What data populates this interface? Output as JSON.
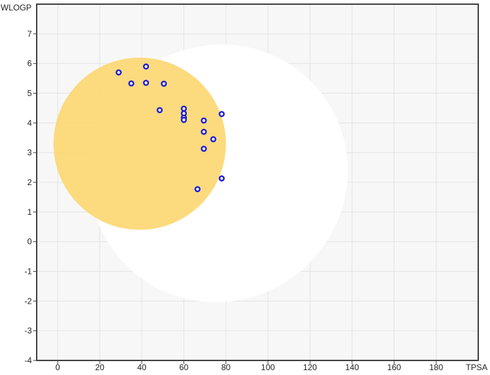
{
  "chart_data": {
    "type": "scatter",
    "xlabel": "TPSA",
    "ylabel": "WLOGP",
    "xlim": [
      -10,
      200
    ],
    "ylim": [
      -4,
      8
    ],
    "x_ticks": [
      0,
      20,
      40,
      60,
      80,
      100,
      120,
      140,
      160,
      180
    ],
    "y_ticks": [
      -4,
      -3,
      -2,
      -1,
      0,
      1,
      2,
      3,
      4,
      5,
      6,
      7
    ],
    "grid": true,
    "regions": [
      {
        "shape": "ellipse",
        "fill": "#ffffff",
        "cx": 76.5,
        "cy": 2.3,
        "rx": 62,
        "ry": 4.3,
        "rotation_deg": -40
      },
      {
        "shape": "ellipse",
        "fill": "#fcd773",
        "cx": 39,
        "cy": 3.3,
        "rx": 41,
        "ry": 2.9,
        "rotation_deg": 0
      }
    ],
    "points": [
      {
        "x": 29,
        "y": 5.7
      },
      {
        "x": 42,
        "y": 5.9
      },
      {
        "x": 35,
        "y": 5.33
      },
      {
        "x": 42,
        "y": 5.35
      },
      {
        "x": 50.5,
        "y": 5.32
      },
      {
        "x": 48.5,
        "y": 4.43
      },
      {
        "x": 60,
        "y": 4.48
      },
      {
        "x": 60,
        "y": 4.32
      },
      {
        "x": 60,
        "y": 4.18
      },
      {
        "x": 60,
        "y": 4.1
      },
      {
        "x": 69.5,
        "y": 4.08
      },
      {
        "x": 78,
        "y": 4.3
      },
      {
        "x": 69.5,
        "y": 3.7
      },
      {
        "x": 74,
        "y": 3.45
      },
      {
        "x": 69.5,
        "y": 3.13
      },
      {
        "x": 78,
        "y": 2.13
      },
      {
        "x": 66.5,
        "y": 1.77
      }
    ],
    "colors": {
      "plot_bg": "#f7f7f7",
      "grid": "#e4e4e4",
      "axis": "#444444",
      "point_stroke": "#1f1fcf"
    }
  }
}
